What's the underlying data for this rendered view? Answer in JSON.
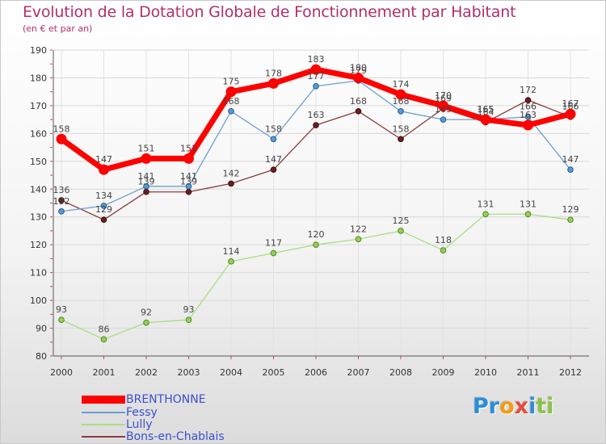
{
  "chart_data": {
    "type": "line",
    "title": "Evolution de la Dotation Globale de Fonctionnement par Habitant",
    "subtitle": "(en € et par an)",
    "xlabel": "",
    "ylabel": "",
    "ylim": [
      80,
      190
    ],
    "yticks": [
      80,
      90,
      100,
      110,
      120,
      130,
      140,
      150,
      160,
      170,
      180,
      190
    ],
    "x": [
      "2000",
      "2001",
      "2002",
      "2003",
      "2004",
      "2005",
      "2006",
      "2007",
      "2008",
      "2009",
      "2010",
      "2011",
      "2012"
    ],
    "series": [
      {
        "name": "BRENTHONNE",
        "color": "#ff0000",
        "values": [
          158,
          147,
          151,
          151,
          175,
          178,
          183,
          180,
          174,
          170,
          165,
          163,
          167
        ]
      },
      {
        "name": "Fessy",
        "color": "#6a9fd0",
        "values": [
          132,
          134,
          141,
          141,
          168,
          158,
          177,
          179,
          168,
          165,
          165,
          166,
          147
        ]
      },
      {
        "name": "Lully",
        "color": "#a9dd82",
        "values": [
          93,
          86,
          92,
          93,
          114,
          117,
          120,
          122,
          125,
          118,
          131,
          131,
          129
        ]
      },
      {
        "name": "Bons-en-Chablais",
        "color": "#8b3a3a",
        "values": [
          136,
          129,
          139,
          139,
          142,
          147,
          163,
          168,
          158,
          169,
          164,
          172,
          166
        ]
      }
    ],
    "data_labels": [
      [
        "158",
        "147",
        "151",
        "151",
        "175",
        "178",
        "183",
        "180",
        "174",
        "170",
        "165",
        "163",
        "167"
      ],
      [
        "132",
        "134",
        "141",
        "141",
        "168",
        "158",
        "177",
        "179",
        "168",
        "165",
        "165",
        "166",
        "147"
      ],
      [
        "93",
        "86",
        "92",
        "93",
        "114",
        "117",
        "120",
        "122",
        "125",
        "118",
        "131",
        "131",
        "129"
      ],
      [
        "136",
        "129",
        "139",
        "139",
        "142",
        "147",
        "163",
        "168",
        "158",
        "169",
        "164",
        "172",
        "166"
      ]
    ],
    "legend_position": "bottom-left"
  },
  "logo": {
    "text": "Proxiti",
    "letters": [
      "P",
      "r",
      "o",
      "x",
      "i",
      "t",
      "i"
    ],
    "colors": [
      "#2e8ed6",
      "#2e8ed6",
      "#f39c12",
      "#e74c3c",
      "#2e8ed6",
      "#8bc34a",
      "#8bc34a"
    ]
  }
}
